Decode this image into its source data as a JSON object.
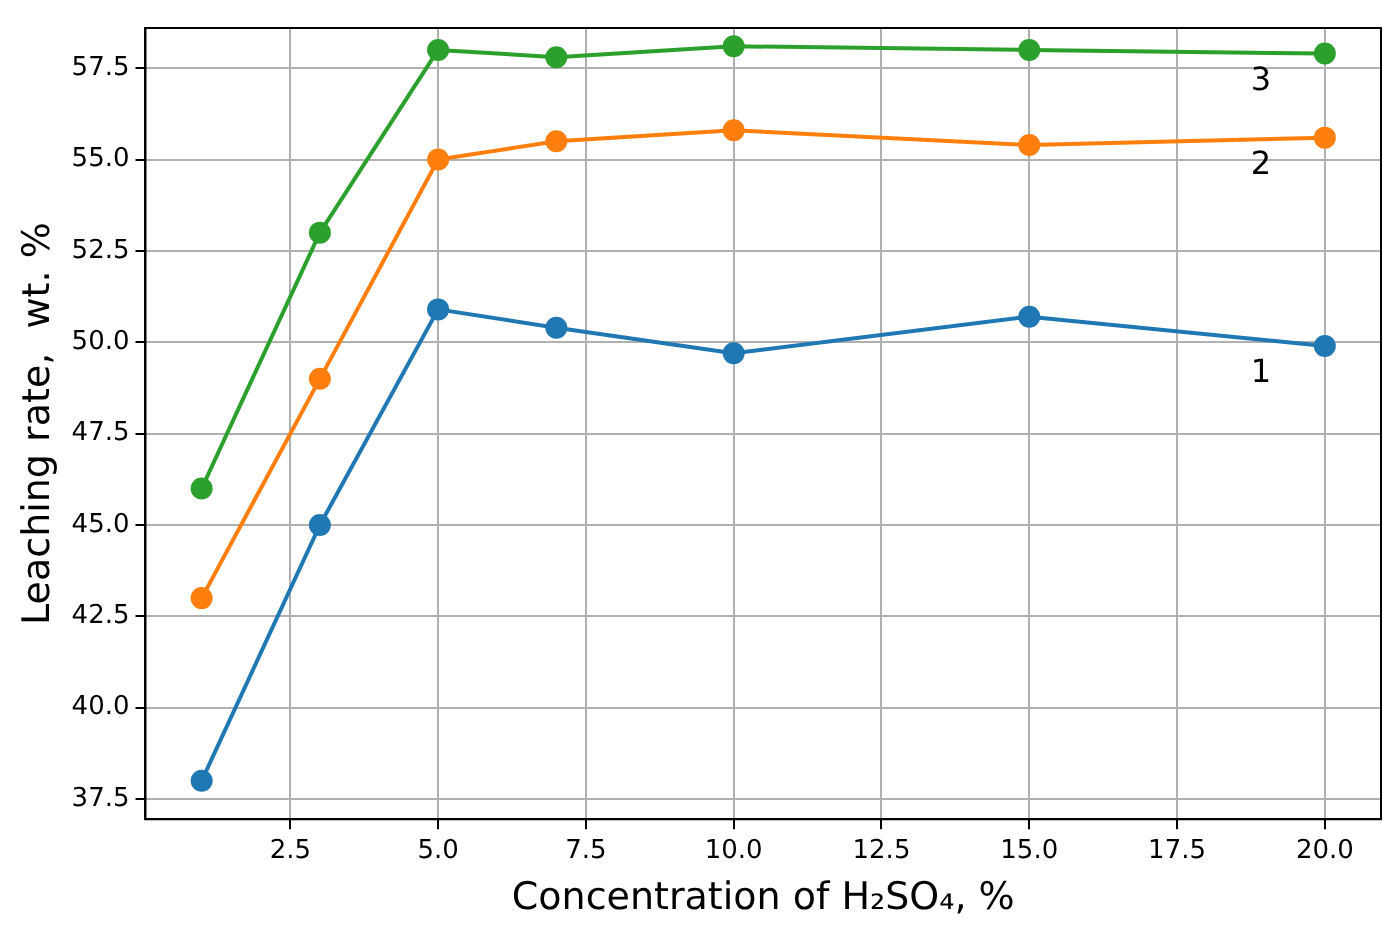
{
  "chart_data": {
    "type": "line",
    "xlabel": "Concentration of H₂SO₄, %",
    "ylabel": "Leaching rate,  wt. %",
    "x": [
      1,
      3,
      5,
      7,
      10,
      15,
      20
    ],
    "series": [
      {
        "name": "1",
        "color": "#1f77b4",
        "values": [
          38,
          45,
          50.9,
          50.4,
          49.7,
          50.7,
          49.9
        ]
      },
      {
        "name": "2",
        "color": "#ff7f0e",
        "values": [
          43,
          49,
          55,
          55.5,
          55.8,
          55.4,
          55.6
        ]
      },
      {
        "name": "3",
        "color": "#2ca02c",
        "values": [
          46,
          53,
          58,
          57.8,
          58.1,
          58,
          57.9
        ]
      }
    ],
    "xlim": [
      0.05,
      20.95
    ],
    "ylim": [
      36.95,
      58.6
    ],
    "xticks": [
      2.5,
      {
        "value": 5,
        "label": "5.0"
      },
      7.5,
      {
        "value": 10,
        "label": "10.0"
      },
      12.5,
      {
        "value": 15,
        "label": "15.0"
      },
      17.5,
      {
        "value": 20,
        "label": "20.0"
      }
    ],
    "yticks": [
      37.5,
      {
        "value": 40,
        "label": "40.0"
      },
      42.5,
      {
        "value": 45,
        "label": "45.0"
      },
      47.5,
      {
        "value": 50,
        "label": "50.0"
      },
      52.5,
      {
        "value": 55,
        "label": "55.0"
      },
      57.5
    ],
    "grid": true,
    "legend": false,
    "marker": "circle",
    "line_style": "solid"
  }
}
